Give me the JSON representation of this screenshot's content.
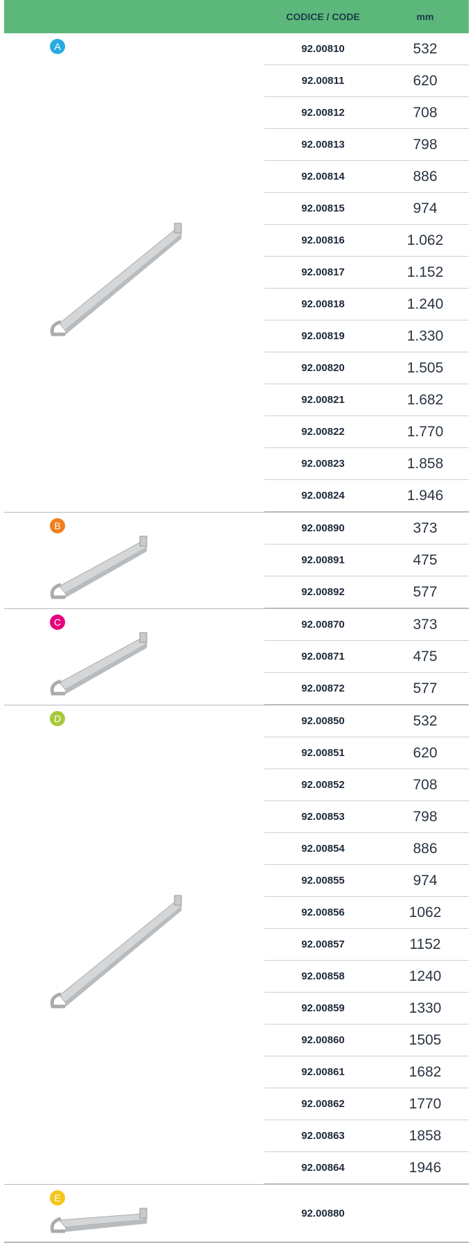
{
  "header": {
    "code": "CODICE / CODE",
    "mm": "mm"
  },
  "groups": [
    {
      "label": "A",
      "color": "#29abe2",
      "rows": [
        {
          "code": "92.00810",
          "mm": "532"
        },
        {
          "code": "92.00811",
          "mm": "620"
        },
        {
          "code": "92.00812",
          "mm": "708"
        },
        {
          "code": "92.00813",
          "mm": "798"
        },
        {
          "code": "92.00814",
          "mm": "886"
        },
        {
          "code": "92.00815",
          "mm": "974"
        },
        {
          "code": "92.00816",
          "mm": "1.062"
        },
        {
          "code": "92.00817",
          "mm": "1.152"
        },
        {
          "code": "92.00818",
          "mm": "1.240"
        },
        {
          "code": "92.00819",
          "mm": "1.330"
        },
        {
          "code": "92.00820",
          "mm": "1.505"
        },
        {
          "code": "92.00821",
          "mm": "1.682"
        },
        {
          "code": "92.00822",
          "mm": "1.770"
        },
        {
          "code": "92.00823",
          "mm": "1.858"
        },
        {
          "code": "92.00824",
          "mm": "1.946"
        }
      ]
    },
    {
      "label": "B",
      "color": "#f07f1e",
      "rows": [
        {
          "code": "92.00890",
          "mm": "373"
        },
        {
          "code": "92.00891",
          "mm": "475"
        },
        {
          "code": "92.00892",
          "mm": "577"
        }
      ]
    },
    {
      "label": "C",
      "color": "#e6007e",
      "rows": [
        {
          "code": "92.00870",
          "mm": "373"
        },
        {
          "code": "92.00871",
          "mm": "475"
        },
        {
          "code": "92.00872",
          "mm": "577"
        }
      ]
    },
    {
      "label": "D",
      "color": "#a6c93a",
      "rows": [
        {
          "code": "92.00850",
          "mm": "532"
        },
        {
          "code": "92.00851",
          "mm": "620"
        },
        {
          "code": "92.00852",
          "mm": "708"
        },
        {
          "code": "92.00853",
          "mm": "798"
        },
        {
          "code": "92.00854",
          "mm": "886"
        },
        {
          "code": "92.00855",
          "mm": "974"
        },
        {
          "code": "92.00856",
          "mm": "1062"
        },
        {
          "code": "92.00857",
          "mm": "1152"
        },
        {
          "code": "92.00858",
          "mm": "1240"
        },
        {
          "code": "92.00859",
          "mm": "1330"
        },
        {
          "code": "92.00860",
          "mm": "1505"
        },
        {
          "code": "92.00861",
          "mm": "1682"
        },
        {
          "code": "92.00862",
          "mm": "1770"
        },
        {
          "code": "92.00863",
          "mm": "1858"
        },
        {
          "code": "92.00864",
          "mm": "1946"
        }
      ]
    },
    {
      "label": "E",
      "color": "#f5c518",
      "rows": [
        {
          "code": "92.00880"
        }
      ]
    }
  ]
}
